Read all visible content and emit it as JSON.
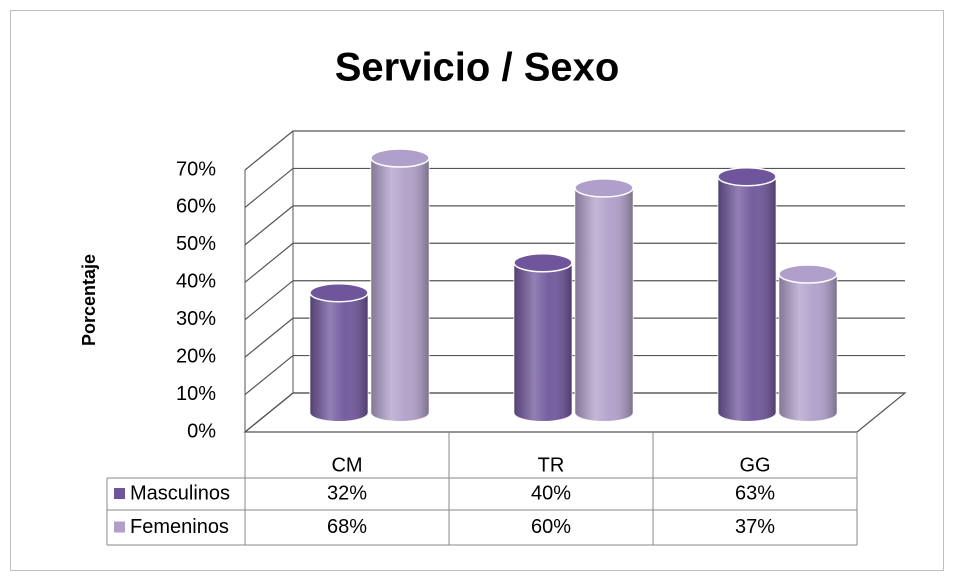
{
  "chart_data": {
    "type": "bar",
    "title": "Servicio / Sexo",
    "y_axis_label": "Porcentaje",
    "categories": [
      "CM",
      "TR",
      "GG"
    ],
    "series": [
      {
        "name": "Masculinos",
        "color": "#6f559b",
        "values": [
          32,
          40,
          63
        ],
        "value_labels": [
          "32%",
          "40%",
          "63%"
        ]
      },
      {
        "name": "Femeninos",
        "color": "#b09fca",
        "values": [
          68,
          60,
          37
        ],
        "value_labels": [
          "68%",
          "60%",
          "37%"
        ]
      }
    ],
    "ylim": [
      0,
      70
    ],
    "yticks": [
      {
        "value": 0,
        "label": "0%"
      },
      {
        "value": 10,
        "label": "10%"
      },
      {
        "value": 20,
        "label": "20%"
      },
      {
        "value": 30,
        "label": "30%"
      },
      {
        "value": 40,
        "label": "40%"
      },
      {
        "value": 50,
        "label": "50%"
      },
      {
        "value": 60,
        "label": "60%"
      },
      {
        "value": 70,
        "label": "70%"
      }
    ],
    "grid": true
  }
}
